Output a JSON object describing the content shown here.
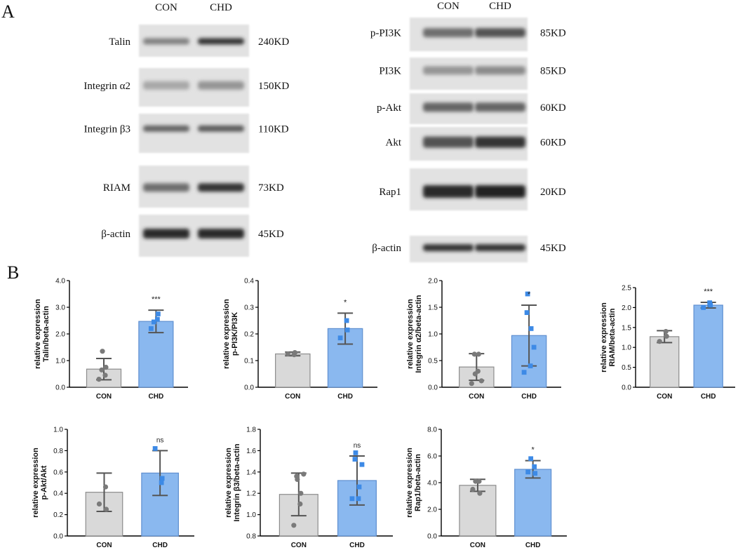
{
  "panel_a_label": "A",
  "panel_b_label": "B",
  "blots": {
    "left": {
      "headers": [
        "CON",
        "CHD"
      ],
      "rows": [
        {
          "protein": "Talin",
          "size": "240KD",
          "con": 0.45,
          "chd": 0.85
        },
        {
          "protein": "Integrin α2",
          "size": "150KD",
          "con": 0.25,
          "chd": 0.35
        },
        {
          "protein": "Integrin β3",
          "size": "110KD",
          "con": 0.6,
          "chd": 0.65
        },
        {
          "protein": "RIAM",
          "size": "73KD",
          "con": 0.55,
          "chd": 0.85
        },
        {
          "protein": "β-actin",
          "size": "45KD",
          "con": 0.9,
          "chd": 0.9
        }
      ]
    },
    "right": {
      "headers": [
        "CON",
        "CHD"
      ],
      "rows": [
        {
          "protein": "p-PI3K",
          "size": "85KD",
          "con": 0.55,
          "chd": 0.7
        },
        {
          "protein": "PI3K",
          "size": "85KD",
          "con": 0.35,
          "chd": 0.4
        },
        {
          "protein": "p-Akt",
          "size": "60KD",
          "con": 0.6,
          "chd": 0.6
        },
        {
          "protein": "Akt",
          "size": "60KD",
          "con": 0.7,
          "chd": 0.85
        },
        {
          "protein": "Rap1",
          "size": "20KD",
          "con": 0.9,
          "chd": 0.95
        },
        {
          "protein": "β-actin",
          "size": "45KD",
          "con": 0.85,
          "chd": 0.85
        }
      ]
    }
  },
  "chart_data": [
    {
      "type": "bar",
      "ylabel": "relative expression\nTalin/beta-actin",
      "categories": [
        "CON",
        "CHD"
      ],
      "values": [
        0.68,
        2.47
      ],
      "error": [
        0.4,
        0.42
      ],
      "points": [
        [
          0.3,
          0.45,
          0.75,
          0.65,
          1.35
        ],
        [
          2.2,
          2.55,
          2.75,
          2.45
        ]
      ],
      "yticks": [
        "0.0",
        "1.0",
        "2.0",
        "3.0",
        "4.0"
      ],
      "ylim": [
        0,
        4
      ],
      "significance": "***"
    },
    {
      "type": "bar",
      "ylabel": "relative expression\np-PI3K/PI3K",
      "categories": [
        "CON",
        "CHD"
      ],
      "values": [
        0.125,
        0.22
      ],
      "error": [
        0.007,
        0.058
      ],
      "points": [
        [
          0.125,
          0.122,
          0.13
        ],
        [
          0.185,
          0.25,
          0.215
        ]
      ],
      "yticks": [
        "0.0",
        "0.1",
        "0.2",
        "0.3",
        "0.4"
      ],
      "ylim": [
        0,
        0.4
      ],
      "significance": "*"
    },
    {
      "type": "bar",
      "ylabel": "relative expression\nIntegrin α2/beta-actin",
      "categories": [
        "CON",
        "CHD"
      ],
      "values": [
        0.38,
        0.97
      ],
      "error": [
        0.25,
        0.57
      ],
      "points": [
        [
          0.07,
          0.3,
          0.62,
          0.62,
          0.25,
          0.12
        ],
        [
          0.28,
          0.4,
          1.1,
          1.4,
          1.75,
          0.75
        ]
      ],
      "yticks": [
        "0.0",
        "0.5",
        "1.0",
        "1.5",
        "2.0"
      ],
      "ylim": [
        0,
        2
      ],
      "significance": "*"
    },
    {
      "type": "bar",
      "ylabel": "relative expression\nRIAM/beta-actin",
      "categories": [
        "CON",
        "CHD"
      ],
      "values": [
        1.27,
        2.06
      ],
      "error": [
        0.15,
        0.07
      ],
      "points": [
        [
          1.15,
          1.4,
          1.28
        ],
        [
          2.0,
          2.12,
          2.06
        ]
      ],
      "yticks": [
        "0.0",
        "0.5",
        "1.0",
        "1.5",
        "2.0",
        "2.5"
      ],
      "ylim": [
        0,
        2.5
      ],
      "significance": "***"
    },
    {
      "type": "bar",
      "ylabel": "relative expression\np-Akt/Akt",
      "categories": [
        "CON",
        "CHD"
      ],
      "values": [
        0.41,
        0.59
      ],
      "error": [
        0.18,
        0.21
      ],
      "points": [
        [
          0.3,
          0.46,
          0.25
        ],
        [
          0.82,
          0.5,
          0.54
        ]
      ],
      "yticks": [
        "0.0",
        "0.2",
        "0.4",
        "0.6",
        "0.8",
        "1.0"
      ],
      "ylim": [
        0,
        1
      ],
      "significance": "ns"
    },
    {
      "type": "bar",
      "ylabel": "relative expression\nIntegrin β3/beta-actin",
      "categories": [
        "CON",
        "CHD"
      ],
      "values": [
        1.19,
        1.32
      ],
      "error": [
        0.2,
        0.23
      ],
      "points": [
        [
          0.9,
          1.1,
          1.2,
          1.36,
          1.33,
          1.38
        ],
        [
          1.15,
          1.15,
          1.26,
          1.52,
          1.58,
          1.47
        ]
      ],
      "yticks": [
        "0.8",
        "1.0",
        "1.2",
        "1.4",
        "1.6",
        "1.8"
      ],
      "ylim": [
        0.8,
        1.8
      ],
      "significance": "ns"
    },
    {
      "type": "bar",
      "ylabel": "relative expression\nRap1/beta-actin",
      "categories": [
        "CON",
        "CHD"
      ],
      "values": [
        3.8,
        5.0
      ],
      "error": [
        0.45,
        0.65
      ],
      "points": [
        [
          3.5,
          4.1,
          3.2,
          4.1
        ],
        [
          4.8,
          5.2,
          4.7,
          5.8
        ]
      ],
      "yticks": [
        "0.0",
        "2.0",
        "4.0",
        "6.0",
        "8.0"
      ],
      "ylim": [
        0,
        8
      ],
      "significance": "*"
    }
  ],
  "colors": {
    "con_fill": "#d9d9d9",
    "con_stroke": "#8c8c8c",
    "chd_fill": "#8ab8ef",
    "chd_stroke": "#5f8fd0",
    "con_point": "#7a7a7a",
    "chd_point": "#3d8ae6",
    "error": "#555555"
  }
}
